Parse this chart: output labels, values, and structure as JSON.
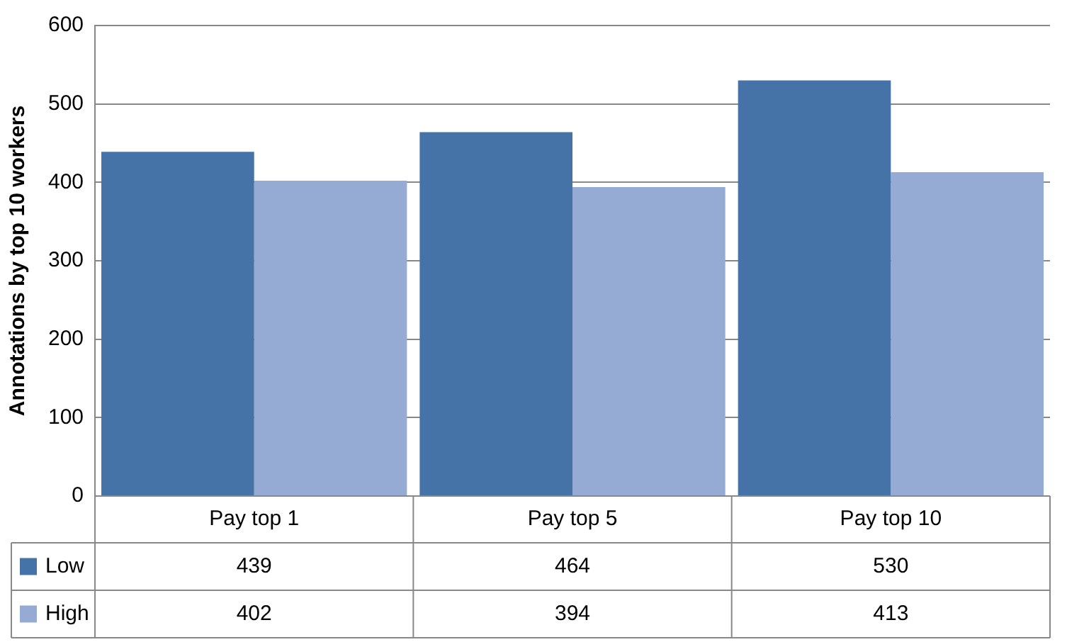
{
  "chart_data": {
    "type": "bar",
    "ylabel": "Annotations by top 10 workers",
    "categories": [
      "Pay top 1",
      "Pay top 5",
      "Pay top 10"
    ],
    "series": [
      {
        "name": "Low",
        "color": "#4572a7",
        "values": [
          439,
          464,
          530
        ]
      },
      {
        "name": "High",
        "color": "#95abd4",
        "values": [
          402,
          394,
          413
        ]
      }
    ],
    "ylim": [
      0,
      600
    ],
    "yticks": [
      0,
      100,
      200,
      300,
      400,
      500,
      600
    ],
    "grid": "y",
    "legend": "bottom",
    "data_labels": true
  }
}
